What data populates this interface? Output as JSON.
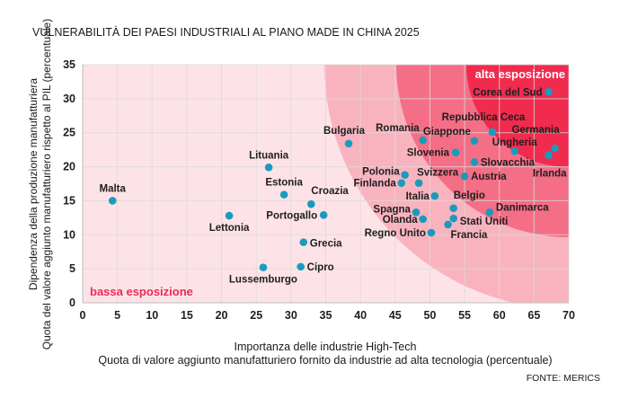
{
  "chart_data": {
    "type": "scatter",
    "title": "VULNERABILITÀ DEI PAESI INDUSTRIALI AL PIANO MADE IN CHINA 2025",
    "xlabel": [
      "Importanza delle industrie High-Tech",
      "Quota di valore aggiunto manufatturiero fornito da industrie ad alta tecnologia (percentuale)"
    ],
    "ylabel": [
      "Dipendenza della produzione manufatturiera",
      "Quota del valore aggiunto manufatturiero rispetto al PIL (percentuale)"
    ],
    "xlim": [
      0,
      70
    ],
    "ylim": [
      0,
      35
    ],
    "xticks": [
      "0",
      "5",
      "10",
      "15",
      "20",
      "25",
      "30",
      "35",
      "40",
      "45",
      "50",
      "55",
      "60",
      "65",
      "70"
    ],
    "yticks": [
      "0",
      "5",
      "10",
      "15",
      "20",
      "25",
      "30",
      "35"
    ],
    "grid": true,
    "annotations": {
      "low": "bassa esposizione",
      "high": "alta esposizione"
    },
    "source": "FONTE: MERICS",
    "colors": {
      "background": "#fde3e7",
      "zone1": "#f9b3bf",
      "zone2": "#f46e86",
      "zone3": "#f02b4e",
      "point": "#1a9bbd",
      "low_text": "#ee2c55",
      "high_text": "#ffffff"
    },
    "points": [
      {
        "name": "Malta",
        "x": 4.3,
        "y": 15.0
      },
      {
        "name": "Lettonia",
        "x": 21.1,
        "y": 12.8
      },
      {
        "name": "Lituania",
        "x": 26.8,
        "y": 19.9
      },
      {
        "name": "Estonia",
        "x": 29.0,
        "y": 15.9
      },
      {
        "name": "Croazia",
        "x": 32.9,
        "y": 14.5
      },
      {
        "name": "Portogallo",
        "x": 34.7,
        "y": 12.9
      },
      {
        "name": "Grecia",
        "x": 31.8,
        "y": 8.9
      },
      {
        "name": "Cipro",
        "x": 31.4,
        "y": 5.3
      },
      {
        "name": "Lussemburgo",
        "x": 26.0,
        "y": 5.2
      },
      {
        "name": "Bulgaria",
        "x": 38.3,
        "y": 23.4
      },
      {
        "name": "Romania",
        "x": 49.0,
        "y": 23.9
      },
      {
        "name": "Giappone",
        "x": 56.4,
        "y": 23.8
      },
      {
        "name": "Repubblica Ceca",
        "x": 59.0,
        "y": 25.1
      },
      {
        "name": "Germania",
        "x": 68.0,
        "y": 22.7
      },
      {
        "name": "Ungheria",
        "x": 62.2,
        "y": 22.3
      },
      {
        "name": "Irlanda",
        "x": 67.1,
        "y": 21.7
      },
      {
        "name": "Slovenia",
        "x": 53.7,
        "y": 22.1
      },
      {
        "name": "Slovacchia",
        "x": 56.4,
        "y": 20.7
      },
      {
        "name": "Polonia",
        "x": 46.4,
        "y": 18.8
      },
      {
        "name": "Svizzera",
        "x": 48.4,
        "y": 17.6
      },
      {
        "name": "Finlanda",
        "x": 45.9,
        "y": 17.6
      },
      {
        "name": "Austria",
        "x": 55.0,
        "y": 18.6
      },
      {
        "name": "Italia",
        "x": 50.7,
        "y": 15.7
      },
      {
        "name": "Belgio",
        "x": 53.4,
        "y": 13.9
      },
      {
        "name": "Spagna",
        "x": 48.0,
        "y": 13.3
      },
      {
        "name": "Olanda",
        "x": 49.0,
        "y": 12.3
      },
      {
        "name": "Stati Uniti",
        "x": 53.4,
        "y": 12.4
      },
      {
        "name": "Francia",
        "x": 52.6,
        "y": 11.5
      },
      {
        "name": "Regno Unito",
        "x": 50.2,
        "y": 10.3
      },
      {
        "name": "Danimarca",
        "x": 58.6,
        "y": 13.3
      },
      {
        "name": "Corea del Sud",
        "x": 67.1,
        "y": 31.0
      }
    ]
  }
}
